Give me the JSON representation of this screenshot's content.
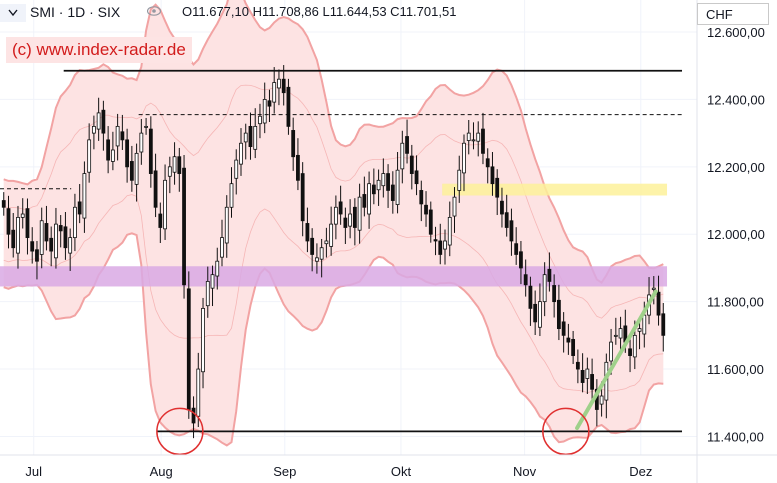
{
  "header": {
    "symbol": "SMI",
    "interval": "1D",
    "exchange": "SIX",
    "title": "SMI · 1D · SIX",
    "ohlc": "O11.677,10 H11.708,86 L11.644,53 C11.701,51"
  },
  "currency": "CHF",
  "watermark": "(c) www.index-radar.de",
  "colors": {
    "up": "#ffffff",
    "down": "#111111",
    "band_fill": "#fde3e3",
    "band_line": "#f2a3a3",
    "purple_zone": "#d9a9e4",
    "yellow_zone": "#fdf19a",
    "trendline": "#9fd08a",
    "marker": "#e03030"
  },
  "chart_data": {
    "type": "candlestick",
    "title": "SMI · 1D · SIX",
    "ylabel": "CHF",
    "ylim": [
      11345,
      12695
    ],
    "y_ticks": [
      "11.400,00",
      "11.600,00",
      "11.800,00",
      "12.000,00",
      "12.200,00",
      "12.400,00",
      "12.600,00"
    ],
    "y_tick_values": [
      11400,
      11600,
      11800,
      12000,
      12200,
      12400,
      12600
    ],
    "x_ticks": [
      "Jul",
      "Aug",
      "Sep",
      "Okt",
      "Nov",
      "Dez"
    ],
    "x_tick_days": [
      9,
      43,
      76,
      107,
      140,
      171
    ],
    "x_range_days": [
      0,
      186
    ],
    "close_series": [
      12080,
      12000,
      11960,
      12050,
      12060,
      11990,
      11950,
      11920,
      12040,
      11980,
      11950,
      12030,
      12010,
      11960,
      11990,
      12080,
      12060,
      12180,
      12280,
      12320,
      12360,
      12300,
      12220,
      12250,
      12320,
      12280,
      12200,
      12160,
      12240,
      12300,
      12320,
      12180,
      12080,
      12020,
      12160,
      12200,
      12230,
      12180,
      11850,
      11480,
      11440,
      11600,
      11780,
      11860,
      11880,
      11920,
      11990,
      12080,
      12150,
      12220,
      12270,
      12300,
      12260,
      12320,
      12350,
      12400,
      12380,
      12450,
      12460,
      12420,
      12320,
      12230,
      12160,
      12040,
      11980,
      11940,
      11930,
      11960,
      11980,
      12030,
      12080,
      12060,
      12020,
      12060,
      12020,
      12110,
      12080,
      12150,
      12120,
      12160,
      12180,
      12130,
      12100,
      12190,
      12270,
      12240,
      12180,
      12150,
      12090,
      12060,
      12000,
      11980,
      11940,
      11980,
      12050,
      12110,
      12190,
      12270,
      12300,
      12280,
      12300,
      12240,
      12200,
      12150,
      12110,
      12060,
      12020,
      11980,
      11940,
      11900,
      11850,
      11780,
      11740,
      11800,
      11880,
      11860,
      11800,
      11720,
      11700,
      11680,
      11640,
      11600,
      11560,
      11600,
      11540,
      11480,
      11520,
      11620,
      11680,
      11700,
      11720,
      11680,
      11640,
      11700,
      11720,
      11760,
      11820,
      11840,
      11760,
      11700
    ],
    "series": [
      {
        "name": "Bollinger upper",
        "style": "band"
      },
      {
        "name": "Bollinger lower",
        "style": "band"
      }
    ],
    "horizontal_levels": [
      {
        "name": "resistance",
        "value": 12485,
        "style": "solid"
      },
      {
        "name": "resistance-dashed",
        "value": 12355,
        "style": "dashed"
      },
      {
        "name": "mid-dashed",
        "value": 12135,
        "style": "dashed"
      },
      {
        "name": "support",
        "value": 11415,
        "style": "solid"
      }
    ],
    "zones": [
      {
        "name": "purple-zone",
        "from": 11845,
        "to": 11905
      },
      {
        "name": "yellow-zone",
        "from": 12115,
        "to": 12150
      }
    ],
    "trendline": {
      "from_day": 154,
      "from_value": 11425,
      "to_day": 175,
      "to_value": 11830
    },
    "markers": [
      {
        "name": "low-aug",
        "day": 48,
        "value": 11415
      },
      {
        "name": "low-nov",
        "day": 151,
        "value": 11415
      }
    ]
  }
}
